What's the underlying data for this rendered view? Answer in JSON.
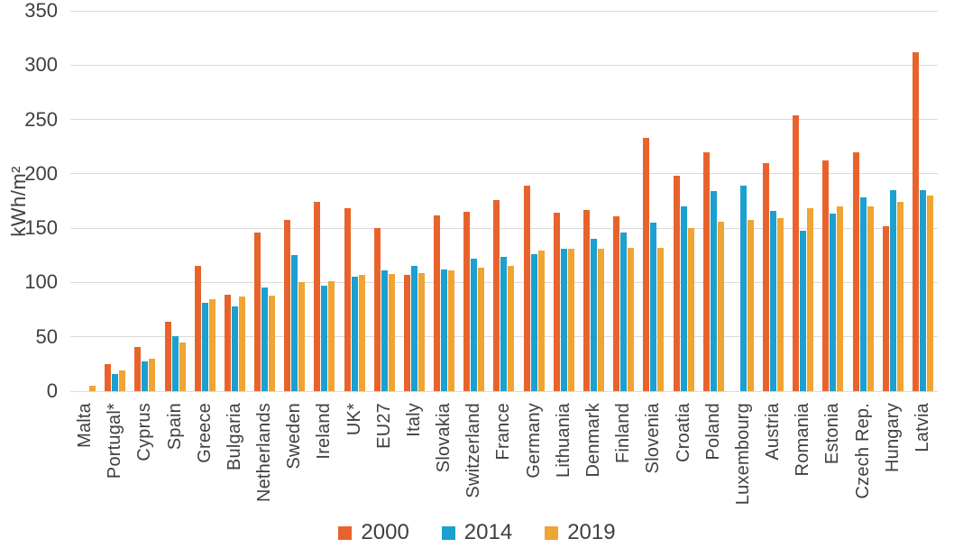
{
  "chart_data": {
    "type": "bar",
    "title": "",
    "xlabel": "",
    "ylabel": "kWh/m²",
    "ylim": [
      0,
      350
    ],
    "yticks": [
      0,
      50,
      100,
      150,
      200,
      250,
      300,
      350
    ],
    "grid": true,
    "legend_position": "bottom",
    "categories": [
      "Malta",
      "Portugal*",
      "Cyprus",
      "Spain",
      "Greece",
      "Bulgaria",
      "Netherlands",
      "Sweden",
      "Ireland",
      "UK*",
      "EU27",
      "Italy",
      "Slovakia",
      "Switzerland",
      "France",
      "Germany",
      "Lithuania",
      "Denmark",
      "Finland",
      "Slovenia",
      "Croatia",
      "Poland",
      "Luxembourg",
      "Austria",
      "Romania",
      "Estonia",
      "Czech Rep.",
      "Hungary",
      "Latvia"
    ],
    "series": [
      {
        "name": "2000",
        "color": "#E8632C",
        "values": [
          null,
          25,
          41,
          64,
          115,
          89,
          146,
          158,
          174,
          168,
          150,
          107,
          162,
          165,
          176,
          189,
          164,
          167,
          161,
          233,
          198,
          220,
          null,
          210,
          254,
          212,
          220,
          152,
          312
        ]
      },
      {
        "name": "2014",
        "color": "#1BA0D0",
        "values": [
          null,
          16,
          27,
          51,
          81,
          78,
          95,
          125,
          97,
          105,
          111,
          115,
          112,
          122,
          124,
          126,
          131,
          140,
          146,
          155,
          170,
          184,
          189,
          166,
          148,
          163,
          178,
          185,
          185
        ]
      },
      {
        "name": "2019",
        "color": "#F0A433",
        "values": [
          5,
          19,
          30,
          45,
          85,
          87,
          88,
          100,
          101,
          107,
          108,
          109,
          111,
          114,
          115,
          129,
          131,
          131,
          132,
          132,
          150,
          156,
          158,
          159,
          168,
          170,
          170,
          174,
          180
        ]
      }
    ]
  },
  "style": {
    "grid_color": "#dadada",
    "text_color": "#3f3f3f"
  }
}
